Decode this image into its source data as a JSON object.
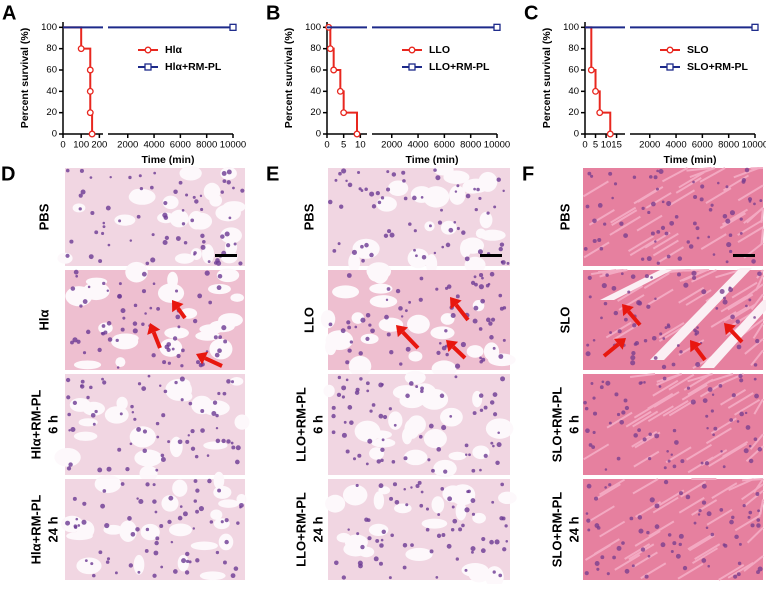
{
  "chart_data": [
    {
      "panel": "A",
      "type": "line",
      "step": true,
      "ylabel": "Percent survival (%)",
      "xlabel": "Time (min)",
      "ylim": [
        0,
        105
      ],
      "yticks": [
        0,
        20,
        40,
        60,
        80,
        100
      ],
      "xsegments": [
        {
          "xlim": [
            0,
            220
          ],
          "xticks": [
            0,
            100,
            200
          ]
        },
        {
          "xlim": [
            500,
            10000
          ],
          "xticks": [
            2000,
            4000,
            6000,
            8000,
            10000
          ]
        }
      ],
      "series": [
        {
          "name": "Hlα",
          "color": "#e8271f",
          "marker": "circle",
          "x": [
            0,
            100,
            150,
            150,
            150,
            160
          ],
          "values": [
            100,
            80,
            60,
            40,
            20,
            0
          ]
        },
        {
          "name": "Hlα+RM-PL",
          "color": "#1d2a8a",
          "marker": "square",
          "x": [
            0,
            10000
          ],
          "values": [
            100,
            100
          ]
        }
      ]
    },
    {
      "panel": "B",
      "type": "line",
      "step": true,
      "ylabel": "Percent survival (%)",
      "xlabel": "Time (min)",
      "ylim": [
        0,
        105
      ],
      "yticks": [
        0,
        20,
        40,
        60,
        80,
        100
      ],
      "xsegments": [
        {
          "xlim": [
            0,
            12
          ],
          "xticks": [
            0,
            5,
            10
          ]
        },
        {
          "xlim": [
            500,
            10000
          ],
          "xticks": [
            2000,
            4000,
            6000,
            8000,
            10000
          ]
        }
      ],
      "series": [
        {
          "name": "LLO",
          "color": "#e8271f",
          "marker": "circle",
          "x": [
            0.5,
            1,
            2,
            4,
            5,
            9
          ],
          "values": [
            100,
            80,
            60,
            40,
            20,
            0
          ]
        },
        {
          "name": "LLO+RM-PL",
          "color": "#1d2a8a",
          "marker": "square",
          "x": [
            0,
            10000
          ],
          "values": [
            100,
            100
          ]
        }
      ]
    },
    {
      "panel": "C",
      "type": "line",
      "step": true,
      "ylabel": "Percent survival (%)",
      "xlabel": "Time (min)",
      "ylim": [
        0,
        105
      ],
      "yticks": [
        0,
        20,
        40,
        60,
        80,
        100
      ],
      "xsegments": [
        {
          "xlim": [
            0,
            19
          ],
          "xticks": [
            0,
            5,
            10,
            15
          ]
        },
        {
          "xlim": [
            500,
            10000
          ],
          "xticks": [
            2000,
            4000,
            6000,
            8000,
            10000
          ]
        }
      ],
      "series": [
        {
          "name": "SLO",
          "color": "#e8271f",
          "marker": "circle",
          "x": [
            0,
            3,
            5,
            7,
            12
          ],
          "values": [
            100,
            60,
            40,
            20,
            0
          ]
        },
        {
          "name": "SLO+RM-PL",
          "color": "#1d2a8a",
          "marker": "square",
          "x": [
            0,
            10000
          ],
          "values": [
            100,
            100
          ]
        }
      ]
    }
  ],
  "histology": [
    {
      "panel": "D",
      "rows": [
        [
          "PBS"
        ],
        [
          "Hlα"
        ],
        [
          "Hlα+RM-PL",
          "6 h"
        ],
        [
          "Hlα+RM-PL",
          "24 h"
        ]
      ]
    },
    {
      "panel": "E",
      "rows": [
        [
          "PBS"
        ],
        [
          "LLO"
        ],
        [
          "LLO+RM-PL",
          "6 h"
        ],
        [
          "LLO+RM-PL",
          "24 h"
        ]
      ]
    },
    {
      "panel": "F",
      "rows": [
        [
          "PBS"
        ],
        [
          "SLO"
        ],
        [
          "SLO+RM-PL",
          "6 h"
        ],
        [
          "SLO+RM-PL",
          "24 h"
        ]
      ]
    }
  ]
}
